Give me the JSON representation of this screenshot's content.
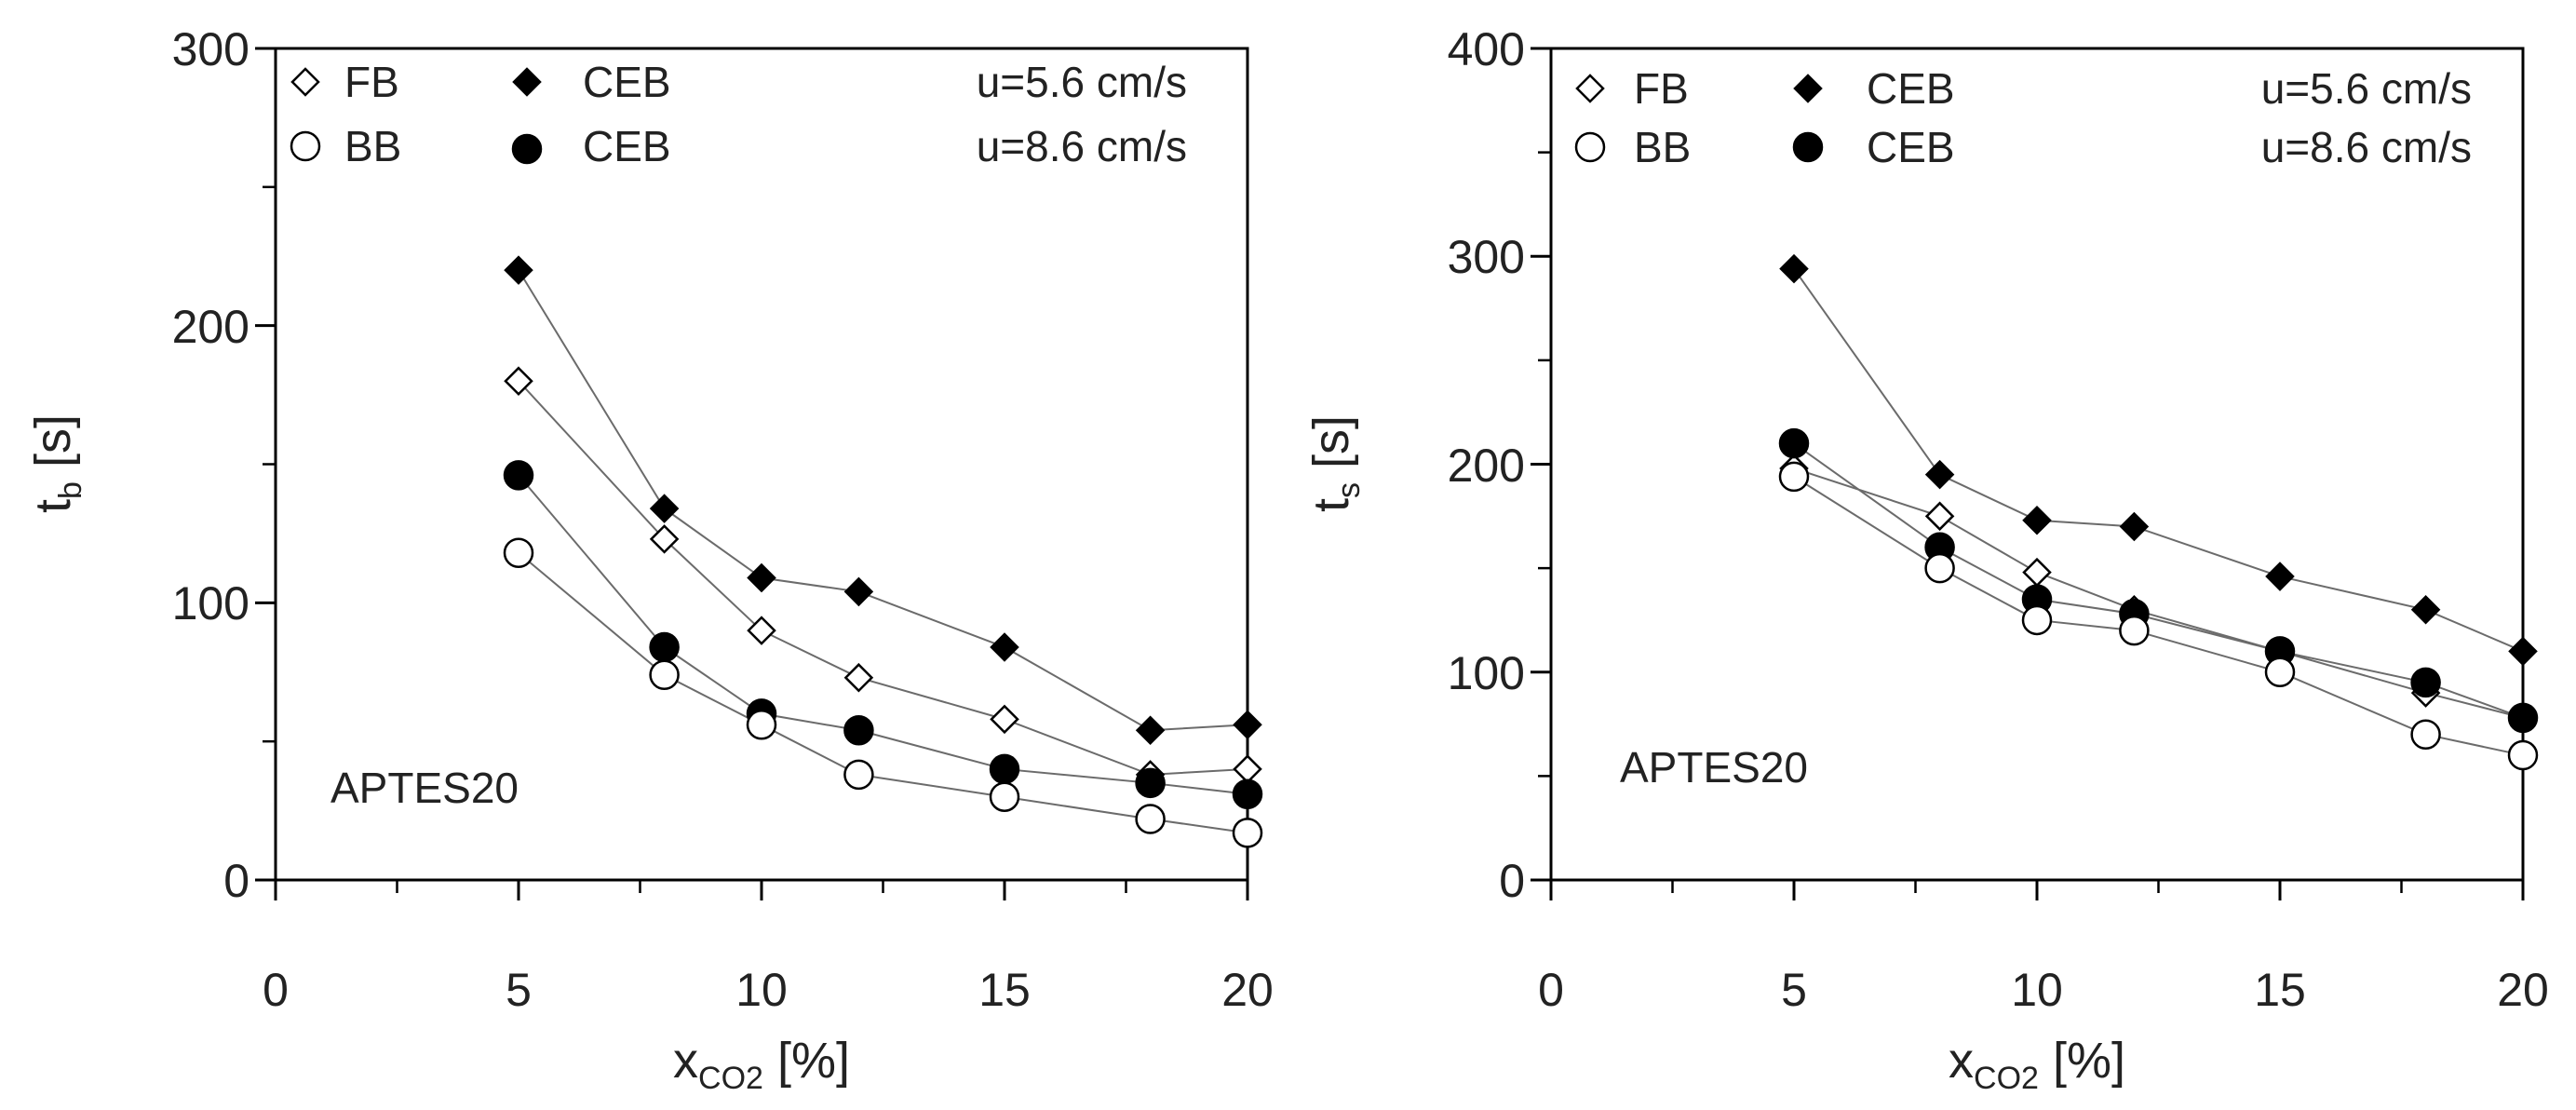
{
  "chart_data": [
    {
      "type": "scatter",
      "id": "left",
      "title": "",
      "annotation": "APTES20",
      "xlabel": {
        "main": "x",
        "sub": "CO2",
        "unit": " [%]"
      },
      "ylabel": {
        "main": "t",
        "sub": "b",
        "unit": " [s]"
      },
      "xlim": [
        0,
        20
      ],
      "ylim": [
        0,
        300
      ],
      "xticks": [
        0,
        5,
        10,
        15,
        20
      ],
      "yticks": [
        0,
        100,
        200,
        300
      ],
      "xtick_labels": [
        "0",
        "5",
        "10",
        "15",
        "20"
      ],
      "ytick_labels": [
        "0",
        "100",
        "200",
        "300"
      ],
      "x": [
        5,
        8,
        10,
        12,
        15,
        18,
        20
      ],
      "grid": false,
      "series": [
        {
          "name": "CEB u=5.6 cm/s",
          "marker": "diamond-filled",
          "values": [
            220,
            134,
            109,
            104,
            84,
            54,
            56
          ]
        },
        {
          "name": "FB u=5.6 cm/s",
          "marker": "diamond-open",
          "values": [
            180,
            123,
            90,
            73,
            58,
            38,
            40
          ]
        },
        {
          "name": "CEB u=8.6 cm/s",
          "marker": "circle-filled",
          "values": [
            146,
            84,
            60,
            54,
            40,
            35,
            31
          ]
        },
        {
          "name": "BB u=8.6 cm/s",
          "marker": "circle-open",
          "values": [
            118,
            74,
            56,
            38,
            30,
            22,
            17
          ]
        }
      ],
      "legend": {
        "placement": "top",
        "row1_left": "FB",
        "row1_mid": "CEB",
        "row1_right": "u=5.6 cm/s",
        "row2_left": "BB",
        "row2_mid": "CEB",
        "row2_right": "u=8.6 cm/s"
      }
    },
    {
      "type": "scatter",
      "id": "right",
      "title": "",
      "annotation": "APTES20",
      "xlabel": {
        "main": "x",
        "sub": "CO2",
        "unit": " [%]"
      },
      "ylabel": {
        "main": "t",
        "sub": "s",
        "unit": " [s]"
      },
      "xlim": [
        0,
        20
      ],
      "ylim": [
        0,
        400
      ],
      "xticks": [
        0,
        5,
        10,
        15,
        20
      ],
      "yticks": [
        0,
        100,
        200,
        300,
        400
      ],
      "xtick_labels": [
        "0",
        "5",
        "10",
        "15",
        "20"
      ],
      "ytick_labels": [
        "0",
        "100",
        "200",
        "300",
        "400"
      ],
      "x": [
        5,
        8,
        10,
        12,
        15,
        18,
        20
      ],
      "grid": false,
      "series": [
        {
          "name": "CEB u=5.6 cm/s",
          "marker": "diamond-filled",
          "values": [
            294,
            195,
            173,
            170,
            146,
            130,
            110
          ]
        },
        {
          "name": "FB u=5.6 cm/s",
          "marker": "diamond-open",
          "values": [
            198,
            175,
            148,
            130,
            110,
            90,
            78
          ]
        },
        {
          "name": "CEB u=8.6 cm/s",
          "marker": "circle-filled",
          "values": [
            210,
            160,
            135,
            128,
            110,
            95,
            78
          ]
        },
        {
          "name": "BB u=8.6 cm/s",
          "marker": "circle-open",
          "values": [
            194,
            150,
            125,
            120,
            100,
            70,
            60
          ]
        }
      ],
      "legend": {
        "placement": "top",
        "row1_left": "FB",
        "row1_mid": "CEB",
        "row1_right": "u=5.6 cm/s",
        "row2_left": "BB",
        "row2_mid": "CEB",
        "row2_right": "u=8.6 cm/s"
      }
    }
  ],
  "colors": {
    "ink": "#000000",
    "line": "#6b6b6b",
    "text": "#222222",
    "background": "#ffffff"
  }
}
